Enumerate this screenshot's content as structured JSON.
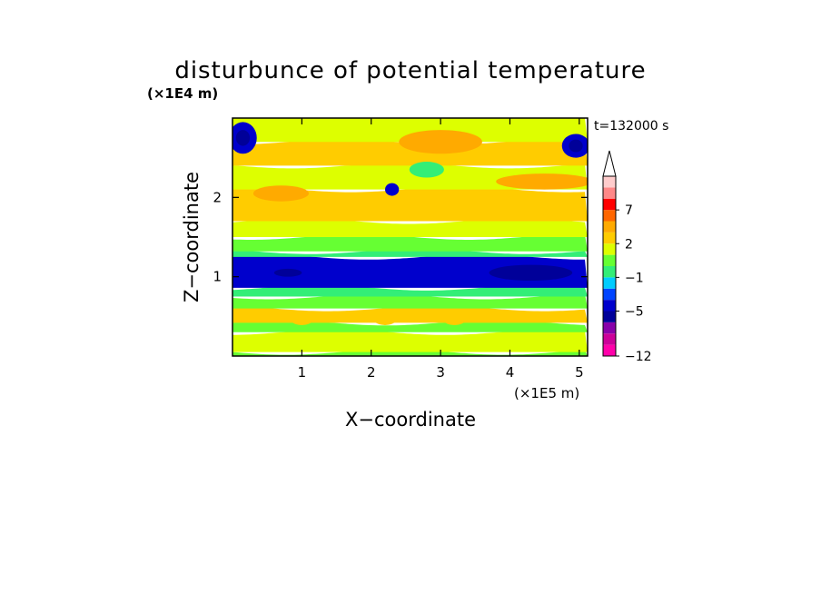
{
  "chart_data": {
    "type": "heatmap",
    "title": "disturbunce of potential temperature",
    "time_label": "t=132000 s",
    "xlabel": "X−coordinate",
    "ylabel": "Z−coordinate",
    "x_unit": "(×1E5 m)",
    "y_unit": "(×1E4 m)",
    "xlim": [
      0,
      5.12
    ],
    "ylim": [
      0,
      3.0
    ],
    "x_ticks": [
      1,
      2,
      3,
      4,
      5
    ],
    "y_ticks": [
      1,
      2
    ],
    "x_tick_labels": [
      "1",
      "2",
      "3",
      "4",
      "5"
    ],
    "y_tick_labels": [
      "1",
      "2"
    ],
    "colorbar": {
      "levels": [
        -12,
        -10,
        -8,
        -6,
        -5,
        -4,
        -3,
        -1,
        0,
        1,
        2,
        3,
        5,
        7,
        9,
        11
      ],
      "labeled_levels": [
        "7",
        "2",
        "−1",
        "−5",
        "−12"
      ],
      "colors": [
        "#ff00aa",
        "#cc0099",
        "#8800aa",
        "#000099",
        "#0000cc",
        "#0044ff",
        "#00ccff",
        "#33ee77",
        "#66ff33",
        "#ddff00",
        "#ffcc00",
        "#ffaa00",
        "#ff6600",
        "#ff0000",
        "#ff8888",
        "#ffcccc"
      ],
      "extend": "max"
    },
    "bands": [
      {
        "z_from": 0.0,
        "z_to": 0.05,
        "level": 0
      },
      {
        "z_from": 0.05,
        "z_to": 0.3,
        "level": 1
      },
      {
        "z_from": 0.3,
        "z_to": 0.42,
        "level": 0
      },
      {
        "z_from": 0.42,
        "z_to": 0.6,
        "level": 2
      },
      {
        "z_from": 0.6,
        "z_to": 0.75,
        "level": 0
      },
      {
        "z_from": 0.75,
        "z_to": 0.86,
        "level": -1
      },
      {
        "z_from": 0.86,
        "z_to": 1.25,
        "level": -5
      },
      {
        "z_from": 1.25,
        "z_to": 1.32,
        "level": -1
      },
      {
        "z_from": 1.32,
        "z_to": 1.5,
        "level": 0
      },
      {
        "z_from": 1.5,
        "z_to": 1.7,
        "level": 1
      },
      {
        "z_from": 1.7,
        "z_to": 2.1,
        "level": 2
      },
      {
        "z_from": 2.1,
        "z_to": 2.4,
        "level": 1
      },
      {
        "z_from": 2.4,
        "z_to": 2.7,
        "level": 2
      },
      {
        "z_from": 2.7,
        "z_to": 3.0,
        "level": 1
      }
    ],
    "features": [
      {
        "x": 0.15,
        "z": 2.75,
        "rx": 0.2,
        "rz": 0.2,
        "level": -5
      },
      {
        "x": 0.15,
        "z": 2.75,
        "rx": 0.1,
        "rz": 0.1,
        "level": -6
      },
      {
        "x": 4.95,
        "z": 2.65,
        "rx": 0.2,
        "rz": 0.15,
        "level": -5
      },
      {
        "x": 4.95,
        "z": 2.65,
        "rx": 0.1,
        "rz": 0.08,
        "level": -6
      },
      {
        "x": 3.0,
        "z": 2.7,
        "rx": 0.6,
        "rz": 0.15,
        "level": 3
      },
      {
        "x": 4.5,
        "z": 2.2,
        "rx": 0.7,
        "rz": 0.1,
        "level": 3
      },
      {
        "x": 0.7,
        "z": 2.05,
        "rx": 0.4,
        "rz": 0.1,
        "level": 3
      },
      {
        "x": 2.3,
        "z": 2.1,
        "rx": 0.1,
        "rz": 0.08,
        "level": -5
      },
      {
        "x": 2.8,
        "z": 2.35,
        "rx": 0.25,
        "rz": 0.1,
        "level": -1
      },
      {
        "x": 4.3,
        "z": 1.05,
        "rx": 0.6,
        "rz": 0.1,
        "level": -6
      },
      {
        "x": 0.8,
        "z": 1.05,
        "rx": 0.2,
        "rz": 0.05,
        "level": -6
      },
      {
        "x": 1.0,
        "z": 0.45,
        "rx": 0.15,
        "rz": 0.06,
        "level": 2
      },
      {
        "x": 2.2,
        "z": 0.45,
        "rx": 0.15,
        "rz": 0.06,
        "level": 2
      },
      {
        "x": 3.2,
        "z": 0.45,
        "rx": 0.15,
        "rz": 0.06,
        "level": 2
      }
    ]
  }
}
